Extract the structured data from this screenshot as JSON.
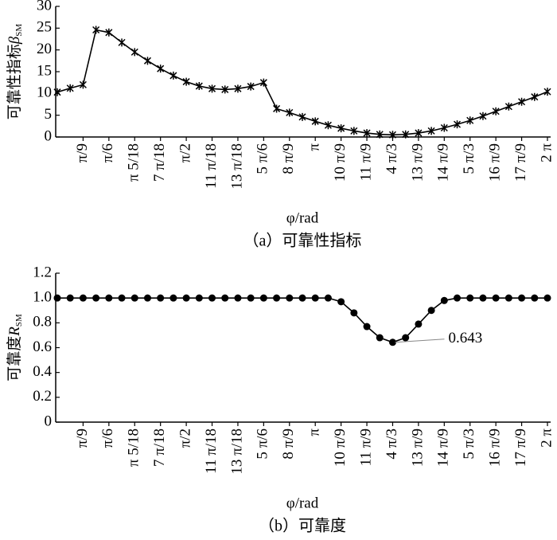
{
  "chart_data": [
    {
      "type": "line",
      "marker": "x",
      "color": "#000000",
      "ylabel": "可靠性指标",
      "ylabel_symbol": "β",
      "ylabel_sub": "SM",
      "xlabel": "φ/rad",
      "caption": "（a）可靠性指标",
      "categories": [
        null,
        null,
        "π/9",
        null,
        "π/6",
        null,
        "π 5/18",
        null,
        "7 π/18",
        null,
        "π/2",
        null,
        "11 π/18",
        null,
        "13 π/18",
        null,
        "5 π/6",
        null,
        "8 π/9",
        null,
        "π",
        null,
        "10 π/9",
        null,
        "11 π/9",
        null,
        "4 π/3",
        null,
        "13 π/9",
        null,
        "14 π/9",
        null,
        "5 π/3",
        null,
        "16 π/9",
        null,
        "17 π/9",
        null,
        "2 π"
      ],
      "values": [
        10.3,
        11.2,
        12.0,
        24.6,
        24.0,
        21.7,
        19.5,
        17.5,
        15.7,
        14.1,
        12.7,
        11.7,
        11.1,
        10.9,
        11.1,
        11.6,
        12.5,
        6.5,
        5.6,
        4.6,
        3.6,
        2.7,
        2.0,
        1.4,
        0.9,
        0.6,
        0.5,
        0.6,
        0.9,
        1.4,
        2.1,
        2.9,
        3.8,
        4.8,
        5.9,
        7.0,
        8.1,
        9.2,
        10.4
      ],
      "ylim": [
        0,
        30
      ],
      "yticks": [
        0,
        5,
        10,
        15,
        20,
        25,
        30
      ]
    },
    {
      "type": "line",
      "marker": "o",
      "color": "#000000",
      "ylabel": "可靠度",
      "ylabel_symbol": "R",
      "ylabel_sub": "SM",
      "xlabel": "φ/rad",
      "caption": "（b）可靠度",
      "categories": [
        null,
        null,
        "π/9",
        null,
        "π/6",
        null,
        "π 5/18",
        null,
        "7 π/18",
        null,
        "π/2",
        null,
        "11 π/18",
        null,
        "13 π/18",
        null,
        "5 π/6",
        null,
        "8 π/9",
        null,
        "π",
        null,
        "10 π/9",
        null,
        "11 π/9",
        null,
        "4 π/3",
        null,
        "13 π/9",
        null,
        "14 π/9",
        null,
        "5 π/3",
        null,
        "16 π/9",
        null,
        "17 π/9",
        null,
        "2 π"
      ],
      "values": [
        1,
        1,
        1,
        1,
        1,
        1,
        1,
        1,
        1,
        1,
        1,
        1,
        1,
        1,
        1,
        1,
        1,
        1,
        1,
        1,
        1,
        1,
        0.97,
        0.88,
        0.77,
        0.68,
        0.643,
        0.68,
        0.79,
        0.9,
        0.98,
        1,
        1,
        1,
        1,
        1,
        1,
        1,
        1
      ],
      "annotation": "0.643",
      "ylim": [
        0,
        1.2
      ],
      "yticks": [
        0,
        0.2,
        0.4,
        0.6,
        0.8,
        {
          "value": 1,
          "label": "1.0"
        },
        1.2
      ]
    }
  ]
}
